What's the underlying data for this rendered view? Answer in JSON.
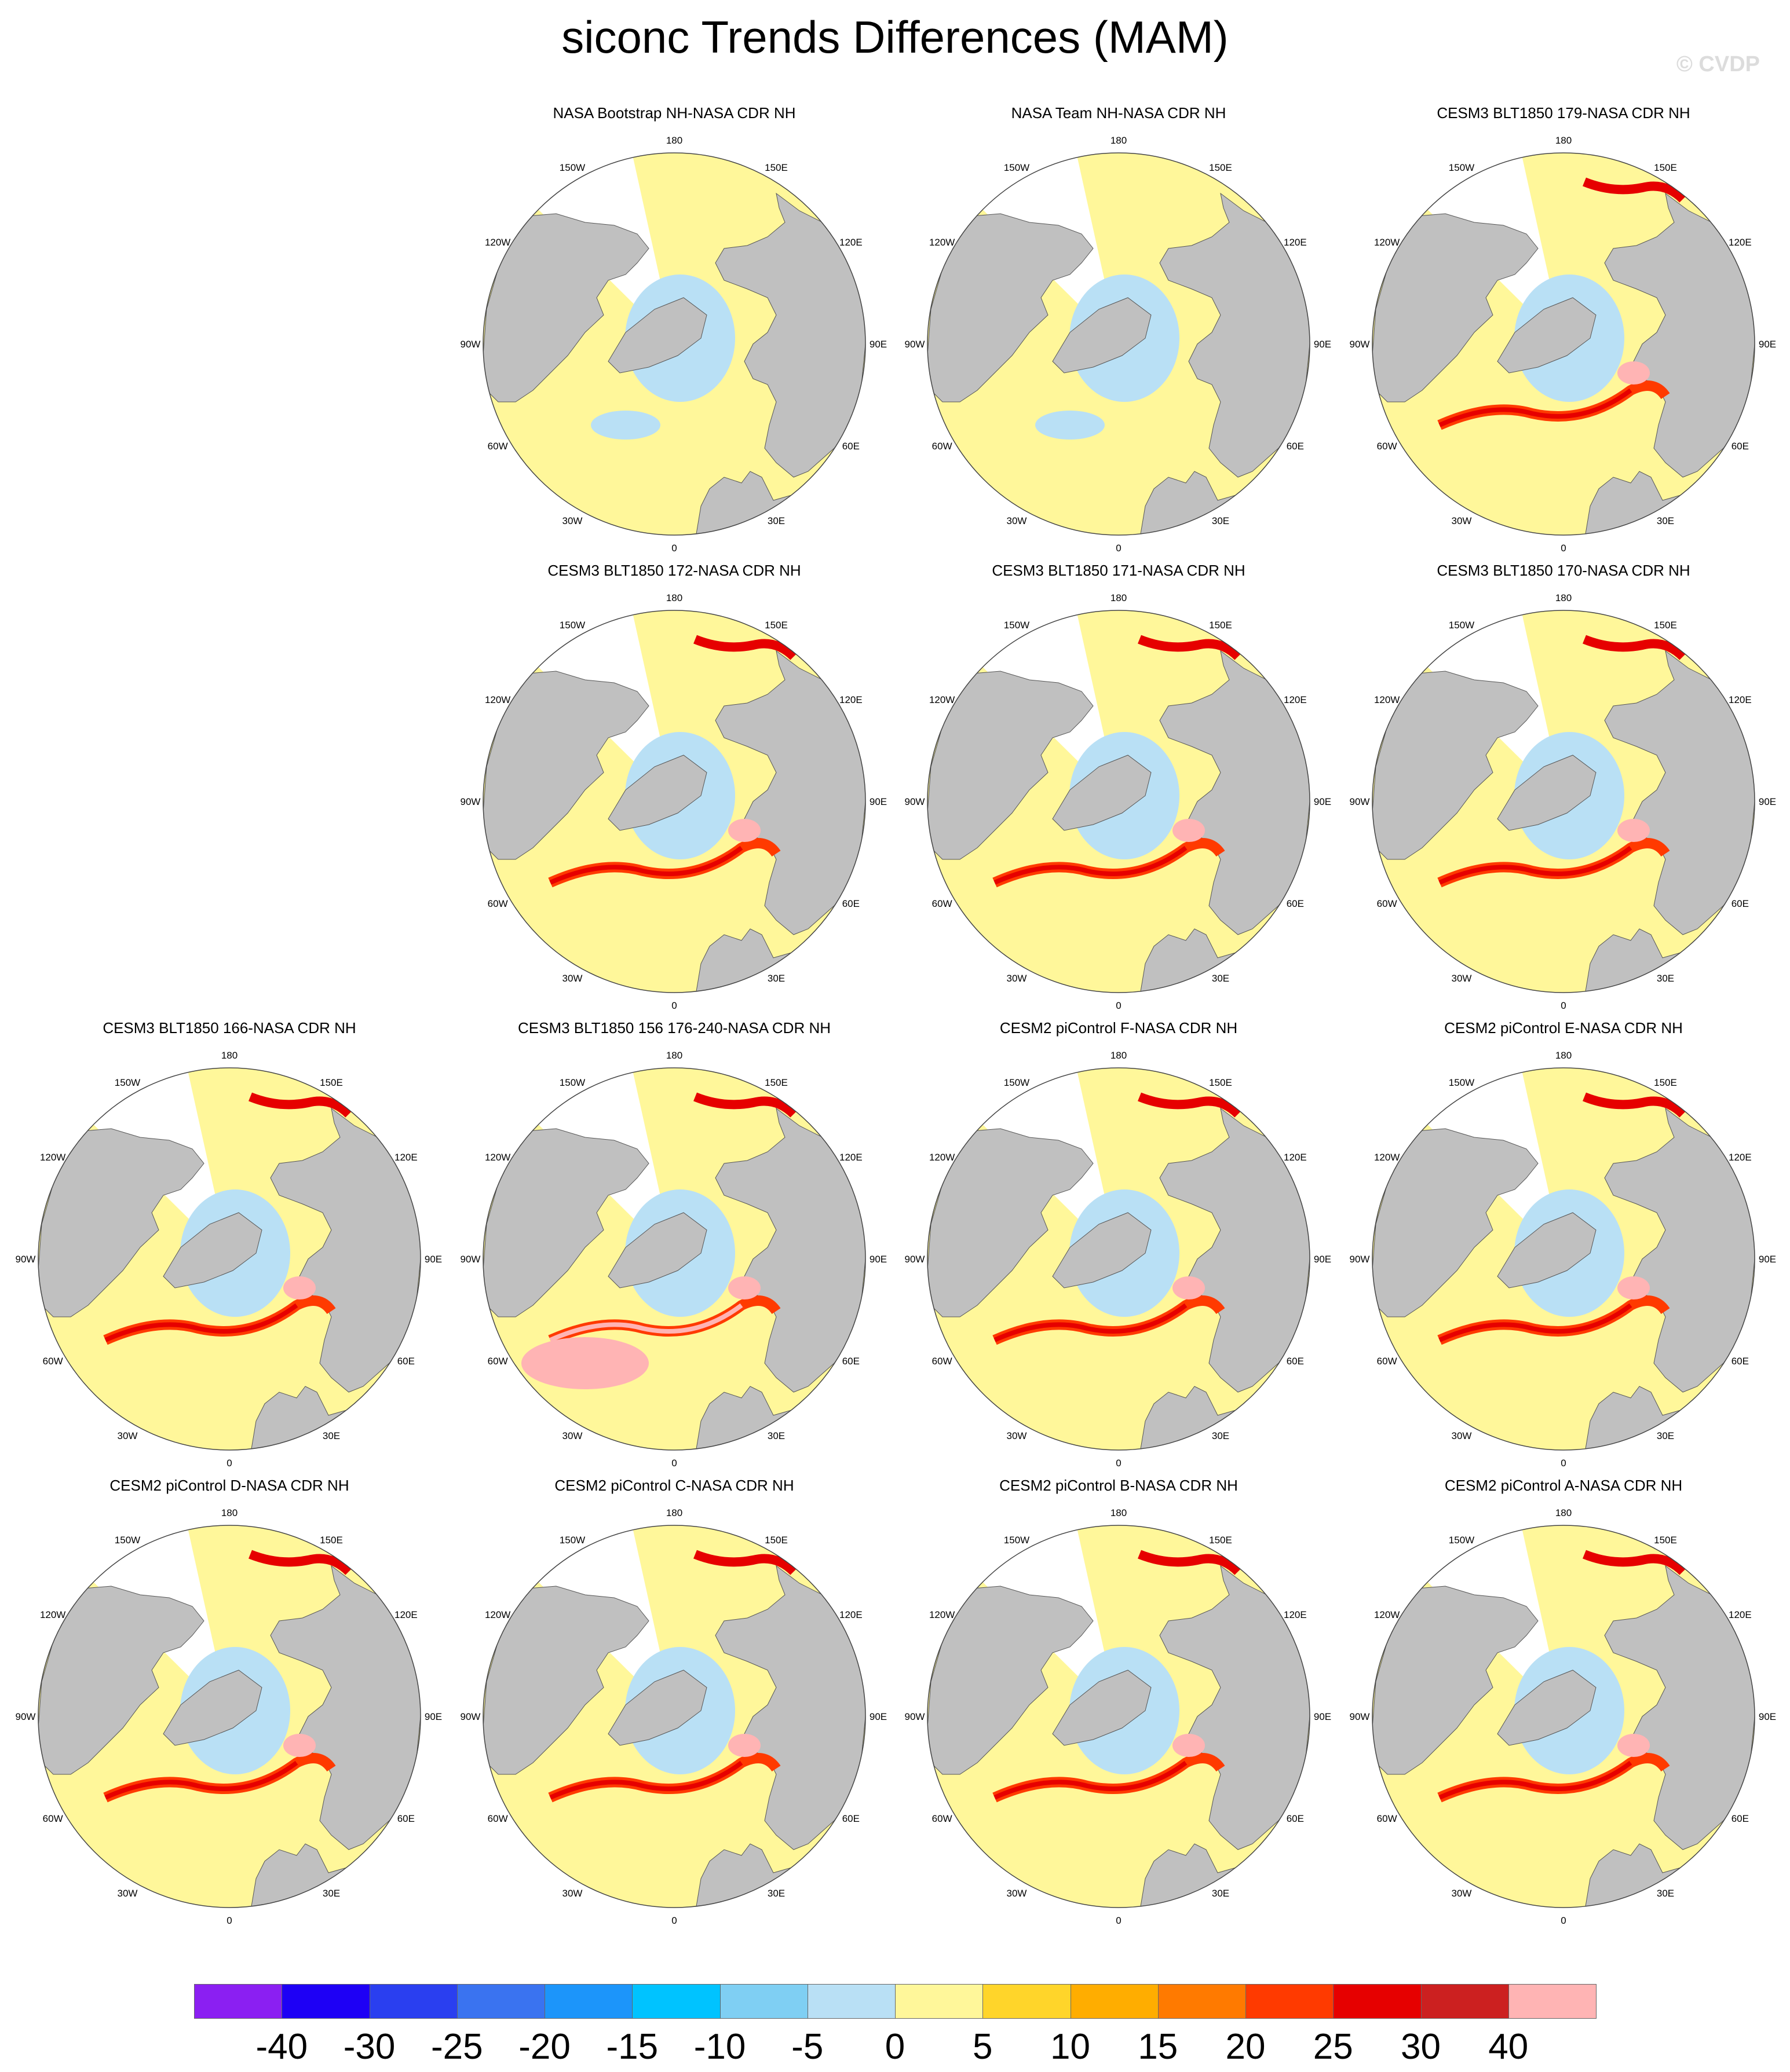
{
  "title": "siconc Trends Differences (MAM)",
  "watermark": "© CVDP",
  "panels": [
    {
      "title": "NASA Bootstrap NH-NASA CDR NH",
      "anomaly": "weak"
    },
    {
      "title": "NASA Team NH-NASA CDR NH",
      "anomaly": "weak"
    },
    {
      "title": "CESM3 BLT1850 179-NASA CDR NH",
      "anomaly": "strong"
    },
    {
      "title": "CESM3 BLT1850 172-NASA CDR NH",
      "anomaly": "strong"
    },
    {
      "title": "CESM3 BLT1850 171-NASA CDR NH",
      "anomaly": "strong"
    },
    {
      "title": "CESM3 BLT1850 170-NASA CDR NH",
      "anomaly": "strong"
    },
    {
      "title": "CESM3 BLT1850 166-NASA CDR NH",
      "anomaly": "strong"
    },
    {
      "title": "CESM3 BLT1850 156 176-240-NASA CDR NH",
      "anomaly": "very-strong"
    },
    {
      "title": "CESM2 piControl F-NASA CDR NH",
      "anomaly": "strong"
    },
    {
      "title": "CESM2 piControl E-NASA CDR NH",
      "anomaly": "strong"
    },
    {
      "title": "CESM2 piControl D-NASA CDR NH",
      "anomaly": "moderate"
    },
    {
      "title": "CESM2 piControl C-NASA CDR NH",
      "anomaly": "moderate"
    },
    {
      "title": "CESM2 piControl B-NASA CDR NH",
      "anomaly": "moderate"
    },
    {
      "title": "CESM2 piControl A-NASA CDR NH",
      "anomaly": "moderate"
    }
  ],
  "longitude_labels": [
    "180",
    "150E",
    "120E",
    "90E",
    "60E",
    "30E",
    "0",
    "30W",
    "60W",
    "90W",
    "120W",
    "150W"
  ],
  "colorbar": {
    "colors": [
      "#8b1ff2",
      "#1e00f5",
      "#2a3ff0",
      "#3a73f0",
      "#1c95fa",
      "#00c3ff",
      "#7fcff3",
      "#b9e0f5",
      "#fff79a",
      "#ffd52a",
      "#ffad00",
      "#ff7a00",
      "#ff3a00",
      "#e60000",
      "#cc2020",
      "#ffb4b4"
    ],
    "labels": [
      "-40",
      "-30",
      "-25",
      "-20",
      "-15",
      "-10",
      "-5",
      "0",
      "5",
      "10",
      "15",
      "20",
      "25",
      "30",
      "40"
    ]
  },
  "map_colors": {
    "land": "#c0c0c0",
    "ice_pos": "#fff79a",
    "ice_neg": "#b9e0f5"
  }
}
